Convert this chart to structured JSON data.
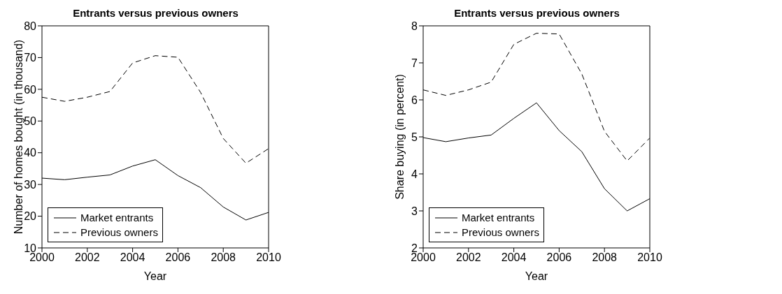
{
  "chart_data": [
    {
      "type": "line",
      "title": "Entrants versus previous owners",
      "xlabel": "Year",
      "ylabel": "Number of homes bought (in thousand)",
      "x": [
        2000,
        2001,
        2002,
        2003,
        2004,
        2005,
        2006,
        2007,
        2008,
        2009,
        2010
      ],
      "xlim": [
        2000,
        2010
      ],
      "xticks": [
        2000,
        2002,
        2004,
        2006,
        2008,
        2010
      ],
      "ylim": [
        10,
        80
      ],
      "yticks": [
        10,
        20,
        30,
        40,
        50,
        60,
        70,
        80
      ],
      "grid": false,
      "legend": "bottom left",
      "series": [
        {
          "name": "Market entrants",
          "color": "#000000",
          "line_style": "solid",
          "values": [
            32,
            31.5,
            32.3,
            33,
            35.8,
            37.8,
            32.8,
            29,
            22.9,
            18.8,
            21.2
          ]
        },
        {
          "name": "Previous owners",
          "color": "#000000",
          "line_style": "dashed",
          "values": [
            57.5,
            56.2,
            57.5,
            59.3,
            68.3,
            70.6,
            70.1,
            59,
            44.5,
            36.7,
            41.3
          ]
        }
      ]
    },
    {
      "type": "line",
      "title": "Entrants versus previous owners",
      "xlabel": "Year",
      "ylabel": "Share buying (in percent)",
      "x": [
        2000,
        2001,
        2002,
        2003,
        2004,
        2005,
        2006,
        2007,
        2008,
        2009,
        2010
      ],
      "xlim": [
        2000,
        2010
      ],
      "xticks": [
        2000,
        2002,
        2004,
        2006,
        2008,
        2010
      ],
      "ylim": [
        2,
        8
      ],
      "yticks": [
        2,
        3,
        4,
        5,
        6,
        7,
        8
      ],
      "grid": false,
      "legend": "bottom left",
      "series": [
        {
          "name": "Market entrants",
          "color": "#000000",
          "line_style": "solid",
          "values": [
            4.98,
            4.87,
            4.97,
            5.05,
            5.5,
            5.92,
            5.17,
            4.6,
            3.6,
            3.0,
            3.33
          ]
        },
        {
          "name": "Previous owners",
          "color": "#000000",
          "line_style": "dashed",
          "values": [
            6.27,
            6.12,
            6.27,
            6.48,
            7.5,
            7.8,
            7.78,
            6.7,
            5.15,
            4.35,
            4.97
          ]
        }
      ]
    }
  ]
}
